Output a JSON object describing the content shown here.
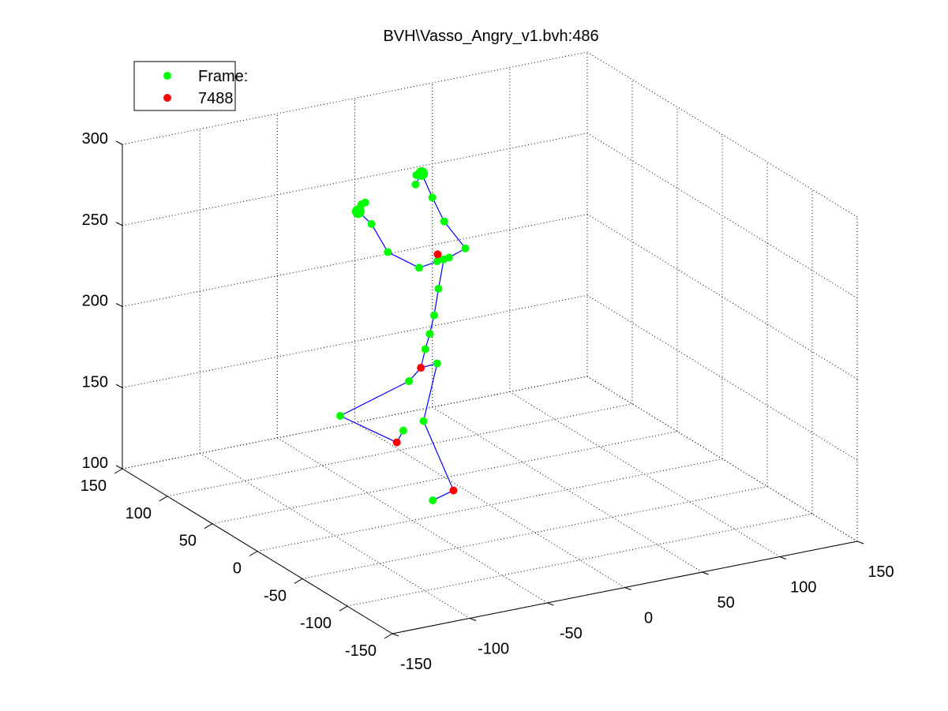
{
  "chart_data": {
    "type": "scatter",
    "projection": "3d",
    "title": "BVH\\Vasso_Angry_v1.bvh:486",
    "xlabel": "",
    "ylabel": "",
    "zlabel": "",
    "xlim": [
      -150,
      150
    ],
    "ylim": [
      -150,
      150
    ],
    "zlim": [
      100,
      300
    ],
    "xticks": [
      "-150",
      "-100",
      "-50",
      "0",
      "50",
      "100",
      "150"
    ],
    "yticks": [
      "-150",
      "-100",
      "-50",
      "0",
      "50",
      "100",
      "150"
    ],
    "zticks": [
      "100",
      "150",
      "200",
      "250",
      "300"
    ],
    "grid": true,
    "legend": {
      "position": "top-left",
      "entries": [
        {
          "label": "Frame:",
          "color": "#00ff00",
          "marker": "dot"
        },
        {
          "label": "7488",
          "color": "#ff0000",
          "marker": "dot"
        }
      ]
    },
    "colors": {
      "joints": "#00ff00",
      "highlight": "#ff0000",
      "bones": "#0000ff",
      "grid": "#000000"
    },
    "joints": [
      {
        "id": "hips",
        "xyz": [
          -30,
          20,
          195
        ],
        "color": "green"
      },
      {
        "id": "spine",
        "xyz": [
          -26,
          22,
          203
        ],
        "color": "green"
      },
      {
        "id": "spine1",
        "xyz": [
          -22,
          24,
          213
        ],
        "color": "green"
      },
      {
        "id": "spine2",
        "xyz": [
          -18,
          26,
          228
        ],
        "color": "green"
      },
      {
        "id": "neck",
        "xyz": [
          -14,
          27,
          245
        ],
        "color": "green"
      },
      {
        "id": "neck_l",
        "xyz": [
          -10,
          28,
          245
        ],
        "color": "green"
      },
      {
        "id": "neck_r",
        "xyz": [
          -20,
          24,
          246
        ],
        "color": "green"
      },
      {
        "id": "head",
        "xyz": [
          -22,
          20,
          252
        ],
        "color": "red"
      },
      {
        "id": "l_shoulder",
        "xyz": [
          -34,
          20,
          246
        ],
        "color": "green"
      },
      {
        "id": "l_upperarm",
        "xyz": [
          -60,
          10,
          264
        ],
        "color": "green"
      },
      {
        "id": "l_forearm",
        "xyz": [
          -74,
          4,
          286
        ],
        "color": "green"
      },
      {
        "id": "l_hand",
        "xyz": [
          -86,
          -2,
          298
        ],
        "color": "green"
      },
      {
        "id": "l_hand_f1",
        "xyz": [
          -84,
          -2,
          302
        ],
        "color": "green"
      },
      {
        "id": "l_hand_f2",
        "xyz": [
          -78,
          4,
          300
        ],
        "color": "green"
      },
      {
        "id": "r_shoulder",
        "xyz": [
          4,
          34,
          246
        ],
        "color": "green"
      },
      {
        "id": "r_upperarm",
        "xyz": [
          -12,
          30,
          267
        ],
        "color": "green"
      },
      {
        "id": "r_forearm",
        "xyz": [
          -22,
          26,
          285
        ],
        "color": "green"
      },
      {
        "id": "r_hand",
        "xyz": [
          -30,
          24,
          302
        ],
        "color": "green"
      },
      {
        "id": "r_hand_f1",
        "xyz": [
          -34,
          24,
          296
        ],
        "color": "green"
      },
      {
        "id": "r_hand_f2",
        "xyz": [
          -30,
          30,
          299
        ],
        "color": "green"
      },
      {
        "id": "pelvis",
        "xyz": [
          -34,
          18,
          185
        ],
        "color": "red"
      },
      {
        "id": "l_hip",
        "xyz": [
          -44,
          14,
          180
        ],
        "color": "green"
      },
      {
        "id": "l_knee",
        "xyz": [
          -100,
          -6,
          176
        ],
        "color": "green"
      },
      {
        "id": "l_ankle",
        "xyz": [
          -60,
          0,
          150
        ],
        "color": "red"
      },
      {
        "id": "l_foot",
        "xyz": [
          -50,
          10,
          152
        ],
        "color": "green"
      },
      {
        "id": "r_hip",
        "xyz": [
          -20,
          24,
          183
        ],
        "color": "green"
      },
      {
        "id": "r_knee",
        "xyz": [
          -30,
          22,
          150
        ],
        "color": "green"
      },
      {
        "id": "r_ankle",
        "xyz": [
          -6,
          30,
          100
        ],
        "color": "red"
      },
      {
        "id": "r_foot",
        "xyz": [
          -24,
          22,
          100
        ],
        "color": "green"
      }
    ],
    "bones": [
      [
        "hips",
        "spine"
      ],
      [
        "spine",
        "spine1"
      ],
      [
        "spine1",
        "spine2"
      ],
      [
        "spine2",
        "neck"
      ],
      [
        "neck",
        "neck_l"
      ],
      [
        "neck",
        "neck_r"
      ],
      [
        "neck",
        "head"
      ],
      [
        "neck",
        "l_shoulder"
      ],
      [
        "l_shoulder",
        "l_upperarm"
      ],
      [
        "l_upperarm",
        "l_forearm"
      ],
      [
        "l_forearm",
        "l_hand"
      ],
      [
        "l_hand",
        "l_hand_f1"
      ],
      [
        "l_hand",
        "l_hand_f2"
      ],
      [
        "neck_l",
        "r_shoulder"
      ],
      [
        "r_shoulder",
        "r_upperarm"
      ],
      [
        "r_upperarm",
        "r_forearm"
      ],
      [
        "r_forearm",
        "r_hand"
      ],
      [
        "r_hand",
        "r_hand_f1"
      ],
      [
        "r_hand",
        "r_hand_f2"
      ],
      [
        "hips",
        "pelvis"
      ],
      [
        "pelvis",
        "l_hip"
      ],
      [
        "l_hip",
        "l_knee"
      ],
      [
        "l_knee",
        "l_ankle"
      ],
      [
        "l_ankle",
        "l_foot"
      ],
      [
        "pelvis",
        "r_hip"
      ],
      [
        "r_hip",
        "r_knee"
      ],
      [
        "r_knee",
        "r_ankle"
      ],
      [
        "r_ankle",
        "r_foot"
      ]
    ]
  }
}
